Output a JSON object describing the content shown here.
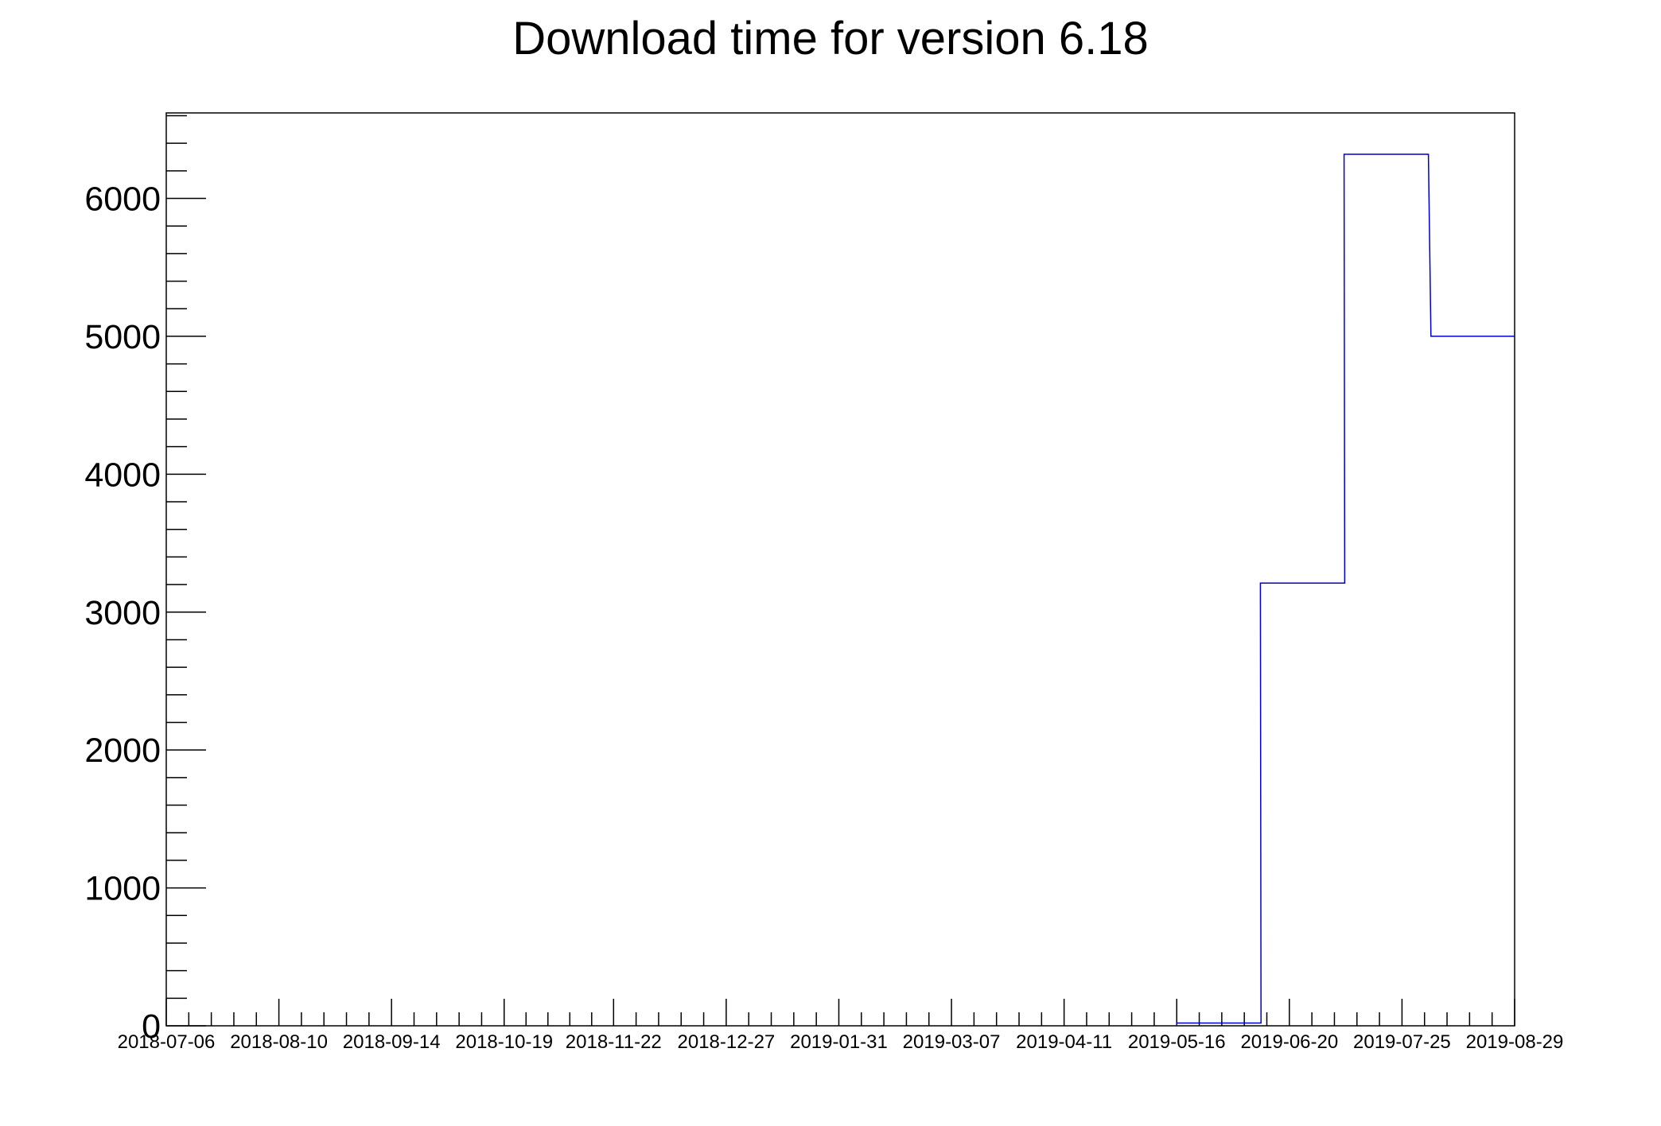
{
  "chart_data": {
    "type": "bar",
    "title": "Download time for version 6.18",
    "xlabel": "",
    "ylabel": "",
    "x_tick_labels": [
      "2018-07-06",
      "2018-08-10",
      "2018-09-14",
      "2018-10-19",
      "2018-11-22",
      "2018-12-27",
      "2019-01-31",
      "2019-03-07",
      "2019-04-11",
      "2019-05-16",
      "2019-06-20",
      "2019-07-25",
      "2019-08-29"
    ],
    "y_tick_labels": [
      "0",
      "1000",
      "2000",
      "3000",
      "4000",
      "5000",
      "6000"
    ],
    "ylim": [
      0,
      6620
    ],
    "grid": false,
    "bin_width_days": 26.2,
    "series": [
      {
        "color": "#0000cc",
        "bins": [
          {
            "start": "2019-05-16",
            "value": 20
          },
          {
            "start": "2019-06-11",
            "value": 3210
          },
          {
            "start": "2019-07-07",
            "value": 6320
          },
          {
            "start": "2019-08-03",
            "value": 5000
          }
        ]
      }
    ]
  }
}
